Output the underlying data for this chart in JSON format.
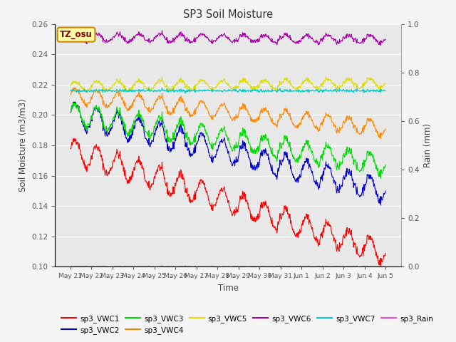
{
  "title": "SP3 Soil Moisture",
  "xlabel": "Time",
  "ylabel_left": "Soil Moisture (m3/m3)",
  "ylabel_right": "Rain (mm)",
  "ylim_left": [
    0.1,
    0.26
  ],
  "ylim_right": [
    0.0,
    1.0
  ],
  "plot_bg": "#e8e8e8",
  "fig_bg": "#f5f5f5",
  "series_colors": {
    "sp3_VWC1": "#ff0000",
    "sp3_VWC2": "#0000cc",
    "sp3_VWC3": "#00dd00",
    "sp3_VWC4": "#ff8800",
    "sp3_VWC5": "#dddd00",
    "sp3_VWC6": "#aa00aa",
    "sp3_VWC7": "#00cccc",
    "sp3_Rain": "#ff44cc"
  },
  "n_points": 720,
  "tz_label": "TZ_osu",
  "tz_bg": "#ffffaa",
  "tz_border": "#cc8800",
  "days_labels": [
    "May 21",
    "May 22",
    "May 23",
    "May 24",
    "May 25",
    "May 26",
    "May 27",
    "May 28",
    "May 29",
    "May 30",
    "May 31",
    "Jun 1",
    "Jun 2",
    "Jun 3",
    "Jun 4",
    "Jun 5"
  ],
  "legend_items": [
    "sp3_VWC1",
    "sp3_VWC2",
    "sp3_VWC3",
    "sp3_VWC4",
    "sp3_VWC5",
    "sp3_VWC6",
    "sp3_VWC7",
    "sp3_Rain"
  ]
}
